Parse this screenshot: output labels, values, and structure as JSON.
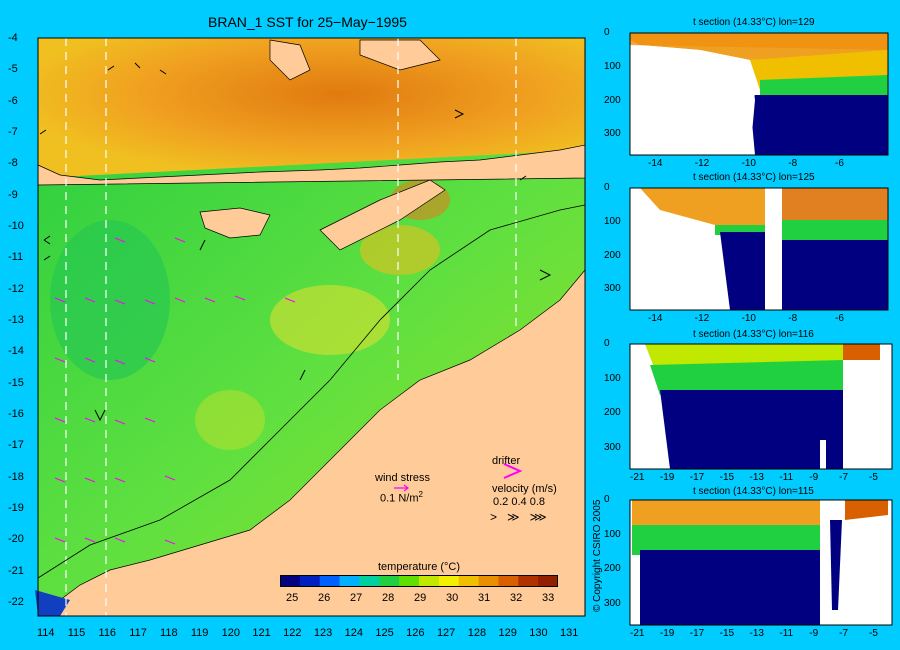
{
  "main_map": {
    "title": "BRAN_1 SST for 25−May−1995",
    "lat_ticks": [
      "-4",
      "-5",
      "-6",
      "-7",
      "-8",
      "-9",
      "-10",
      "-11",
      "-12",
      "-13",
      "-14",
      "-15",
      "-16",
      "-17",
      "-18",
      "-19",
      "-20",
      "-21",
      "-22"
    ],
    "lon_ticks": [
      "114",
      "115",
      "116",
      "117",
      "118",
      "119",
      "120",
      "121",
      "122",
      "123",
      "124",
      "125",
      "126",
      "127",
      "128",
      "129",
      "130",
      "131"
    ]
  },
  "legend": {
    "wind_stress_label": "wind stress",
    "wind_stress_scale": "0.1 N/m",
    "wind_stress_unit_sup": "2",
    "drifter_label": "drifter",
    "velocity_label": "velocity (m/s)",
    "velocity_scale": "0.2 0.4 0.8",
    "velocity_arrows": ">   ≫   ⋙"
  },
  "colorbar": {
    "title": "temperature (°C)",
    "ticks": [
      "25",
      "26",
      "27",
      "28",
      "29",
      "30",
      "31",
      "32",
      "33"
    ],
    "colors": [
      "#000080",
      "#0020c0",
      "#0060ff",
      "#00b0ff",
      "#00d0a0",
      "#20d040",
      "#60e000",
      "#c0e800",
      "#f0f000",
      "#f0c000",
      "#e89000",
      "#d86000",
      "#b03000",
      "#902000"
    ]
  },
  "sections": [
    {
      "title": "t section (14.33°C) lon=129",
      "x_ticks": [
        "-14",
        "-12",
        "-10",
        "-8",
        "-6"
      ],
      "y_ticks": [
        "0",
        "100",
        "200",
        "300"
      ]
    },
    {
      "title": "t section (14.33°C) lon=125",
      "x_ticks": [
        "-14",
        "-12",
        "-10",
        "-8",
        "-6"
      ],
      "y_ticks": [
        "0",
        "100",
        "200",
        "300"
      ]
    },
    {
      "title": "t section (14.33°C) lon=116",
      "x_ticks": [
        "-21",
        "-19",
        "-17",
        "-15",
        "-13",
        "-11",
        "-9",
        "-7",
        "-5"
      ],
      "y_ticks": [
        "0",
        "100",
        "200",
        "300"
      ]
    },
    {
      "title": "t section (14.33°C) lon=115",
      "x_ticks": [
        "-21",
        "-19",
        "-17",
        "-15",
        "-13",
        "-11",
        "-9",
        "-7",
        "-5"
      ],
      "y_ticks": [
        "0",
        "100",
        "200",
        "300"
      ]
    }
  ],
  "copyright": "© Copyright CSIRO 2005"
}
